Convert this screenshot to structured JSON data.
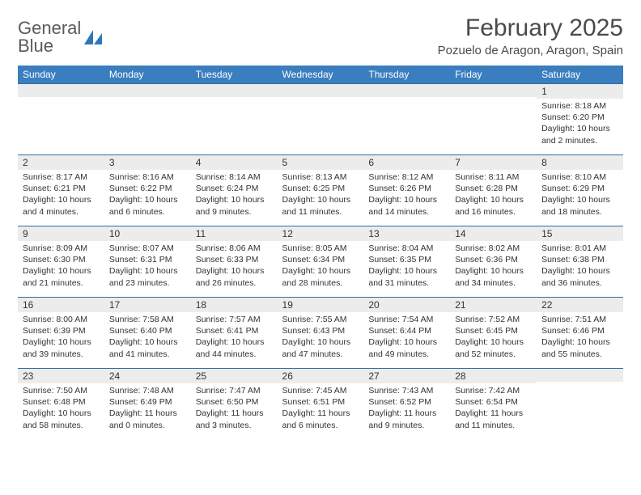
{
  "logo": {
    "line1": "General",
    "line2": "Blue"
  },
  "title": "February 2025",
  "location": "Pozuelo de Aragon, Aragon, Spain",
  "colors": {
    "header_bg": "#3a7ebf",
    "header_text": "#ffffff",
    "daynum_bg": "#ececec",
    "row_border": "#2f6fa8",
    "body_text": "#333333",
    "logo_gray": "#5a5a5a",
    "logo_blue": "#2f77bb"
  },
  "typography": {
    "title_fontsize": 30,
    "location_fontsize": 15,
    "dayheader_fontsize": 12,
    "daynum_fontsize": 12,
    "cell_fontsize": 10.5
  },
  "day_headers": [
    "Sunday",
    "Monday",
    "Tuesday",
    "Wednesday",
    "Thursday",
    "Friday",
    "Saturday"
  ],
  "weeks": [
    [
      {
        "n": "",
        "sunrise": "",
        "sunset": "",
        "daylight": ""
      },
      {
        "n": "",
        "sunrise": "",
        "sunset": "",
        "daylight": ""
      },
      {
        "n": "",
        "sunrise": "",
        "sunset": "",
        "daylight": ""
      },
      {
        "n": "",
        "sunrise": "",
        "sunset": "",
        "daylight": ""
      },
      {
        "n": "",
        "sunrise": "",
        "sunset": "",
        "daylight": ""
      },
      {
        "n": "",
        "sunrise": "",
        "sunset": "",
        "daylight": ""
      },
      {
        "n": "1",
        "sunrise": "Sunrise: 8:18 AM",
        "sunset": "Sunset: 6:20 PM",
        "daylight": "Daylight: 10 hours and 2 minutes."
      }
    ],
    [
      {
        "n": "2",
        "sunrise": "Sunrise: 8:17 AM",
        "sunset": "Sunset: 6:21 PM",
        "daylight": "Daylight: 10 hours and 4 minutes."
      },
      {
        "n": "3",
        "sunrise": "Sunrise: 8:16 AM",
        "sunset": "Sunset: 6:22 PM",
        "daylight": "Daylight: 10 hours and 6 minutes."
      },
      {
        "n": "4",
        "sunrise": "Sunrise: 8:14 AM",
        "sunset": "Sunset: 6:24 PM",
        "daylight": "Daylight: 10 hours and 9 minutes."
      },
      {
        "n": "5",
        "sunrise": "Sunrise: 8:13 AM",
        "sunset": "Sunset: 6:25 PM",
        "daylight": "Daylight: 10 hours and 11 minutes."
      },
      {
        "n": "6",
        "sunrise": "Sunrise: 8:12 AM",
        "sunset": "Sunset: 6:26 PM",
        "daylight": "Daylight: 10 hours and 14 minutes."
      },
      {
        "n": "7",
        "sunrise": "Sunrise: 8:11 AM",
        "sunset": "Sunset: 6:28 PM",
        "daylight": "Daylight: 10 hours and 16 minutes."
      },
      {
        "n": "8",
        "sunrise": "Sunrise: 8:10 AM",
        "sunset": "Sunset: 6:29 PM",
        "daylight": "Daylight: 10 hours and 18 minutes."
      }
    ],
    [
      {
        "n": "9",
        "sunrise": "Sunrise: 8:09 AM",
        "sunset": "Sunset: 6:30 PM",
        "daylight": "Daylight: 10 hours and 21 minutes."
      },
      {
        "n": "10",
        "sunrise": "Sunrise: 8:07 AM",
        "sunset": "Sunset: 6:31 PM",
        "daylight": "Daylight: 10 hours and 23 minutes."
      },
      {
        "n": "11",
        "sunrise": "Sunrise: 8:06 AM",
        "sunset": "Sunset: 6:33 PM",
        "daylight": "Daylight: 10 hours and 26 minutes."
      },
      {
        "n": "12",
        "sunrise": "Sunrise: 8:05 AM",
        "sunset": "Sunset: 6:34 PM",
        "daylight": "Daylight: 10 hours and 28 minutes."
      },
      {
        "n": "13",
        "sunrise": "Sunrise: 8:04 AM",
        "sunset": "Sunset: 6:35 PM",
        "daylight": "Daylight: 10 hours and 31 minutes."
      },
      {
        "n": "14",
        "sunrise": "Sunrise: 8:02 AM",
        "sunset": "Sunset: 6:36 PM",
        "daylight": "Daylight: 10 hours and 34 minutes."
      },
      {
        "n": "15",
        "sunrise": "Sunrise: 8:01 AM",
        "sunset": "Sunset: 6:38 PM",
        "daylight": "Daylight: 10 hours and 36 minutes."
      }
    ],
    [
      {
        "n": "16",
        "sunrise": "Sunrise: 8:00 AM",
        "sunset": "Sunset: 6:39 PM",
        "daylight": "Daylight: 10 hours and 39 minutes."
      },
      {
        "n": "17",
        "sunrise": "Sunrise: 7:58 AM",
        "sunset": "Sunset: 6:40 PM",
        "daylight": "Daylight: 10 hours and 41 minutes."
      },
      {
        "n": "18",
        "sunrise": "Sunrise: 7:57 AM",
        "sunset": "Sunset: 6:41 PM",
        "daylight": "Daylight: 10 hours and 44 minutes."
      },
      {
        "n": "19",
        "sunrise": "Sunrise: 7:55 AM",
        "sunset": "Sunset: 6:43 PM",
        "daylight": "Daylight: 10 hours and 47 minutes."
      },
      {
        "n": "20",
        "sunrise": "Sunrise: 7:54 AM",
        "sunset": "Sunset: 6:44 PM",
        "daylight": "Daylight: 10 hours and 49 minutes."
      },
      {
        "n": "21",
        "sunrise": "Sunrise: 7:52 AM",
        "sunset": "Sunset: 6:45 PM",
        "daylight": "Daylight: 10 hours and 52 minutes."
      },
      {
        "n": "22",
        "sunrise": "Sunrise: 7:51 AM",
        "sunset": "Sunset: 6:46 PM",
        "daylight": "Daylight: 10 hours and 55 minutes."
      }
    ],
    [
      {
        "n": "23",
        "sunrise": "Sunrise: 7:50 AM",
        "sunset": "Sunset: 6:48 PM",
        "daylight": "Daylight: 10 hours and 58 minutes."
      },
      {
        "n": "24",
        "sunrise": "Sunrise: 7:48 AM",
        "sunset": "Sunset: 6:49 PM",
        "daylight": "Daylight: 11 hours and 0 minutes."
      },
      {
        "n": "25",
        "sunrise": "Sunrise: 7:47 AM",
        "sunset": "Sunset: 6:50 PM",
        "daylight": "Daylight: 11 hours and 3 minutes."
      },
      {
        "n": "26",
        "sunrise": "Sunrise: 7:45 AM",
        "sunset": "Sunset: 6:51 PM",
        "daylight": "Daylight: 11 hours and 6 minutes."
      },
      {
        "n": "27",
        "sunrise": "Sunrise: 7:43 AM",
        "sunset": "Sunset: 6:52 PM",
        "daylight": "Daylight: 11 hours and 9 minutes."
      },
      {
        "n": "28",
        "sunrise": "Sunrise: 7:42 AM",
        "sunset": "Sunset: 6:54 PM",
        "daylight": "Daylight: 11 hours and 11 minutes."
      },
      {
        "n": "",
        "sunrise": "",
        "sunset": "",
        "daylight": ""
      }
    ]
  ]
}
